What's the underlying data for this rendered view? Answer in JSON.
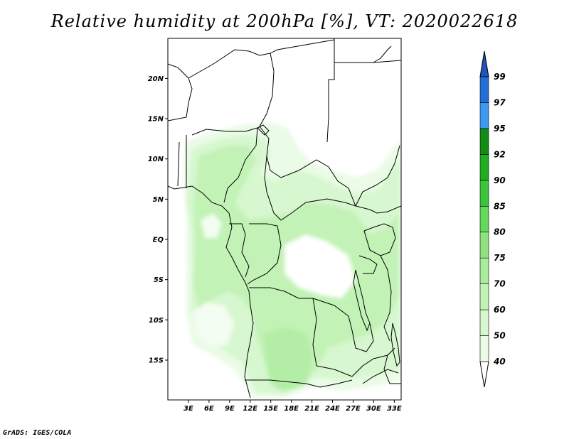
{
  "title": "Relative humidity at 200hPa [%], VT: 2020022618",
  "credit": "GrADS: IGES/COLA",
  "map": {
    "lon_range": [
      0,
      34
    ],
    "lat_range": [
      -20,
      25
    ],
    "lon_ticks": [
      "3E",
      "6E",
      "9E",
      "12E",
      "15E",
      "18E",
      "21E",
      "24E",
      "27E",
      "30E",
      "33E"
    ],
    "lon_tick_values": [
      3,
      6,
      9,
      12,
      15,
      18,
      21,
      24,
      27,
      30,
      33
    ],
    "lat_ticks": [
      "20N",
      "15N",
      "10N",
      "5N",
      "EQ",
      "5S",
      "10S",
      "15S"
    ],
    "lat_tick_values": [
      20,
      15,
      10,
      5,
      0,
      -5,
      -10,
      -15
    ]
  },
  "colorbar": {
    "levels": [
      "40",
      "50",
      "60",
      "70",
      "75",
      "80",
      "85",
      "90",
      "92",
      "95",
      "97",
      "99"
    ],
    "colors": [
      "#ffffff",
      "#eafbe6",
      "#d6f7cf",
      "#c2f2b6",
      "#a9ec9c",
      "#8fe27f",
      "#64d95a",
      "#3cc43a",
      "#1fad22",
      "#138c16",
      "#3f98f0",
      "#226fd8",
      "#1e55b8"
    ]
  }
}
